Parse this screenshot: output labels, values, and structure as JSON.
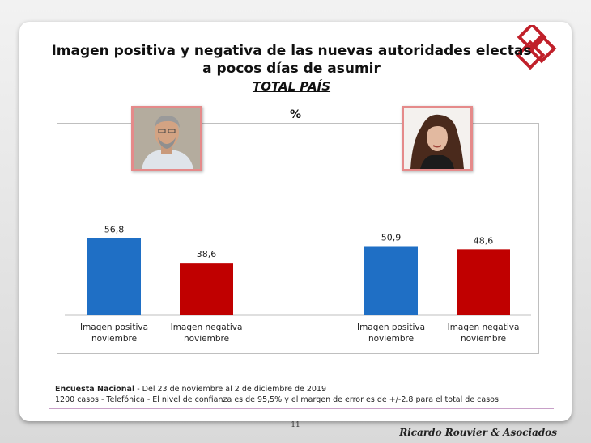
{
  "slide": {
    "title": "Imagen positiva y negativa de las nuevas autoridades electas  a pocos días de asumir",
    "subtitle": "TOTAL PAÍS",
    "footnote_bold": "Encuesta Nacional",
    "footnote_line1": " - Del 23 de noviembre  al 2 de diciembre  de 2019",
    "footnote_line2": "1200 casos - Telefónica  - El nivel de confianza es de 95,5% y el margen de error es de +/-2.8 para el total de casos.",
    "page_number": "11",
    "brand": "Ricardo Rouvier & Asociados",
    "logo_icon": "diamond-logo-icon",
    "photo_left_icon": "portrait-man-icon",
    "photo_right_icon": "portrait-woman-icon"
  },
  "chart_data": {
    "type": "bar",
    "title": "Imagen positiva y negativa de las nuevas autoridades electas  a pocos días de asumir",
    "subtitle": "TOTAL PAÍS",
    "ylabel": "%",
    "categories": [
      "Imagen positiva noviembre",
      "Imagen negativa noviembre",
      "",
      "Imagen positiva noviembre",
      "Imagen negativa noviembre"
    ],
    "values": [
      56.8,
      38.6,
      null,
      50.9,
      48.6
    ],
    "value_labels": [
      "56,8",
      "38,6",
      "",
      "50,9",
      "48,6"
    ],
    "colors": [
      "#1f6fc5",
      "#c00000",
      "",
      "#1f6fc5",
      "#c00000"
    ],
    "ylim": [
      0,
      100
    ],
    "grid": false,
    "legend": "none"
  }
}
